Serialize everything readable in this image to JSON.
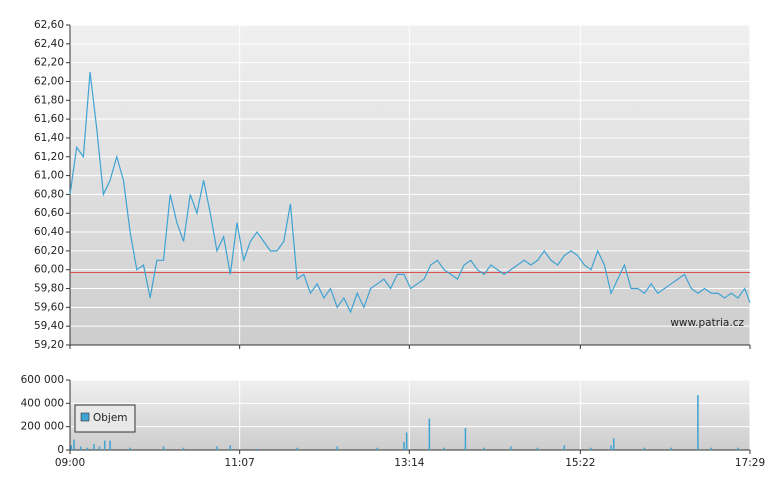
{
  "chart_data": [
    {
      "type": "line",
      "xlim": [
        "09:00",
        "17:29"
      ],
      "ylim": [
        59.2,
        62.6
      ],
      "yticks": [
        {
          "value": 59.2,
          "label": "59,20"
        },
        {
          "value": 59.4,
          "label": "59,40"
        },
        {
          "value": 59.6,
          "label": "59,60"
        },
        {
          "value": 59.8,
          "label": "59,80"
        },
        {
          "value": 60.0,
          "label": "60,00"
        },
        {
          "value": 60.2,
          "label": "60,20"
        },
        {
          "value": 60.4,
          "label": "60,40"
        },
        {
          "value": 60.6,
          "label": "60,60"
        },
        {
          "value": 60.8,
          "label": "60,80"
        },
        {
          "value": 61.0,
          "label": "61,00"
        },
        {
          "value": 61.2,
          "label": "61,20"
        },
        {
          "value": 61.4,
          "label": "61,40"
        },
        {
          "value": 61.6,
          "label": "61,60"
        },
        {
          "value": 61.8,
          "label": "61,80"
        },
        {
          "value": 62.0,
          "label": "62,00"
        },
        {
          "value": 62.2,
          "label": "62,20"
        },
        {
          "value": 62.4,
          "label": "62,40"
        },
        {
          "value": 62.6,
          "label": "62,60"
        }
      ],
      "grid": true,
      "reference_line": {
        "value": 59.97,
        "color": "#d9534f"
      },
      "watermark": "www.patria.cz",
      "x": [
        "09:00",
        "09:05",
        "09:10",
        "09:15",
        "09:20",
        "09:25",
        "09:30",
        "09:35",
        "09:40",
        "09:45",
        "09:50",
        "09:55",
        "10:00",
        "10:05",
        "10:10",
        "10:15",
        "10:20",
        "10:25",
        "10:30",
        "10:35",
        "10:40",
        "10:45",
        "10:50",
        "10:55",
        "11:00",
        "11:05",
        "11:10",
        "11:15",
        "11:20",
        "11:25",
        "11:30",
        "11:35",
        "11:40",
        "11:45",
        "11:50",
        "11:55",
        "12:00",
        "12:05",
        "12:10",
        "12:15",
        "12:20",
        "12:25",
        "12:30",
        "12:35",
        "12:40",
        "12:45",
        "12:50",
        "12:55",
        "13:00",
        "13:05",
        "13:10",
        "13:15",
        "13:20",
        "13:25",
        "13:30",
        "13:35",
        "13:40",
        "13:45",
        "13:50",
        "13:55",
        "14:00",
        "14:05",
        "14:10",
        "14:15",
        "14:20",
        "14:25",
        "14:30",
        "14:35",
        "14:40",
        "14:45",
        "14:50",
        "14:55",
        "15:00",
        "15:05",
        "15:10",
        "15:15",
        "15:20",
        "15:25",
        "15:30",
        "15:35",
        "15:40",
        "15:45",
        "15:50",
        "15:55",
        "16:00",
        "16:05",
        "16:10",
        "16:15",
        "16:20",
        "16:25",
        "16:30",
        "16:35",
        "16:40",
        "16:45",
        "16:50",
        "16:55",
        "17:00",
        "17:05",
        "17:10",
        "17:15",
        "17:20",
        "17:25",
        "17:29"
      ],
      "series": [
        {
          "color": "#3fa3d3",
          "values": [
            60.8,
            61.3,
            61.2,
            62.1,
            61.5,
            60.8,
            60.95,
            61.2,
            60.95,
            60.4,
            60.0,
            60.05,
            59.7,
            60.1,
            60.1,
            60.8,
            60.5,
            60.3,
            60.8,
            60.6,
            60.95,
            60.6,
            60.2,
            60.35,
            59.95,
            60.5,
            60.1,
            60.3,
            60.4,
            60.3,
            60.2,
            60.2,
            60.3,
            60.7,
            59.9,
            59.95,
            59.75,
            59.85,
            59.7,
            59.8,
            59.6,
            59.7,
            59.55,
            59.75,
            59.6,
            59.8,
            59.85,
            59.9,
            59.8,
            59.95,
            59.95,
            59.8,
            59.85,
            59.9,
            60.05,
            60.1,
            60.0,
            59.95,
            59.9,
            60.05,
            60.1,
            60.0,
            59.95,
            60.05,
            60.0,
            59.95,
            60.0,
            60.05,
            60.1,
            60.05,
            60.1,
            60.2,
            60.1,
            60.05,
            60.15,
            60.2,
            60.15,
            60.05,
            60.0,
            60.2,
            60.05,
            59.75,
            59.9,
            60.05,
            59.8,
            59.8,
            59.75,
            59.85,
            59.75,
            59.8,
            59.85,
            59.9,
            59.95,
            59.8,
            59.75,
            59.8,
            59.75,
            59.75,
            59.7,
            59.75,
            59.7,
            59.8,
            59.65
          ]
        }
      ]
    },
    {
      "type": "bar",
      "xlim": [
        "09:00",
        "17:29"
      ],
      "xticks": [
        "09:00",
        "11:07",
        "13:14",
        "15:22",
        "17:29"
      ],
      "ylim": [
        0,
        600000
      ],
      "yticks": [
        0,
        {
          "value": 200000,
          "label": "200 000"
        },
        {
          "value": 400000,
          "label": "400 000"
        },
        {
          "value": 600000,
          "label": "600 000"
        }
      ],
      "grid": true,
      "legend": "top-left",
      "x": [
        "09:01",
        "09:03",
        "09:08",
        "09:13",
        "09:18",
        "09:22",
        "09:26",
        "09:30",
        "09:45",
        "10:10",
        "10:25",
        "10:50",
        "11:00",
        "11:20",
        "11:50",
        "12:20",
        "12:50",
        "13:10",
        "13:12",
        "13:29",
        "13:40",
        "13:56",
        "14:10",
        "14:30",
        "14:50",
        "15:10",
        "15:30",
        "15:45",
        "15:47",
        "16:10",
        "16:30",
        "16:50",
        "17:00",
        "17:20"
      ],
      "series": [
        {
          "name": "Objem",
          "color": "#3fa3d3",
          "values": [
            40000,
            90000,
            30000,
            20000,
            50000,
            30000,
            80000,
            80000,
            20000,
            30000,
            20000,
            30000,
            40000,
            10000,
            20000,
            30000,
            20000,
            70000,
            150000,
            270000,
            20000,
            190000,
            20000,
            30000,
            20000,
            40000,
            20000,
            40000,
            100000,
            20000,
            20000,
            470000,
            20000,
            20000
          ]
        }
      ]
    }
  ]
}
